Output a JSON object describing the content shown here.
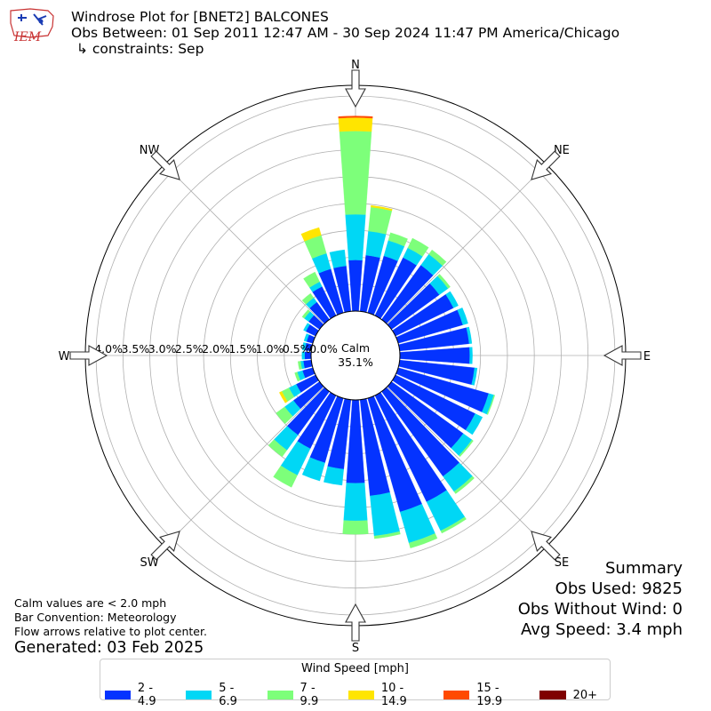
{
  "header": {
    "title": "Windrose Plot for [BNET2] BALCONES",
    "obs_between": "Obs Between: 01 Sep 2011 12:47 AM - 30 Sep 2024 11:47 PM America/Chicago",
    "constraints": "↳ constraints: Sep",
    "logo_text": "IEM"
  },
  "notes": {
    "calm": "Calm values are < 2.0 mph",
    "convention": "Bar Convention: Meteorology",
    "flow": "Flow arrows relative to plot center.",
    "generated": "Generated: 03 Feb 2025"
  },
  "summary": {
    "title": "Summary",
    "obs_used": "Obs Used: 9825",
    "obs_without_wind": "Obs Without Wind: 0",
    "avg_speed": "Avg Speed: 3.4 mph"
  },
  "legend": {
    "title": "Wind Speed [mph]",
    "items": [
      {
        "label": "2 - 4.9",
        "color": "#0433ff"
      },
      {
        "label": "5 - 6.9",
        "color": "#00d7f5"
      },
      {
        "label": "7 - 9.9",
        "color": "#7dff7a"
      },
      {
        "label": "10 - 14.9",
        "color": "#ffe500"
      },
      {
        "label": "15 - 19.9",
        "color": "#ff4a00"
      },
      {
        "label": "20+",
        "color": "#7f0000"
      }
    ]
  },
  "chart_data": {
    "type": "windrose",
    "calm_label": "Calm",
    "calm_percent": "35.1%",
    "radial_ticks": [
      "0.0%",
      "0.5%",
      "1.0%",
      "1.5%",
      "2.0%",
      "2.5%",
      "3.0%",
      "3.5%",
      "4.0%"
    ],
    "radial_values": [
      0,
      0.5,
      1.0,
      1.5,
      2.0,
      2.5,
      3.0,
      3.5,
      4.0
    ],
    "rmax": 4.2,
    "compass_labels": [
      "N",
      "NE",
      "E",
      "SE",
      "S",
      "SW",
      "W",
      "NW"
    ],
    "bins": [
      "2 - 4.9",
      "5 - 6.9",
      "7 - 9.9",
      "10 - 14.9",
      "15 - 19.9",
      "20+"
    ],
    "directions_deg": [
      0,
      10,
      20,
      30,
      40,
      50,
      60,
      70,
      80,
      90,
      100,
      110,
      120,
      130,
      140,
      150,
      160,
      170,
      180,
      190,
      200,
      210,
      220,
      230,
      240,
      250,
      260,
      270,
      280,
      290,
      300,
      310,
      320,
      330,
      340,
      350
    ],
    "percent_by_direction": [
      [
        0.95,
        0.85,
        1.55,
        0.25,
        0.03,
        0.0
      ],
      [
        1.05,
        0.45,
        0.45,
        0.03,
        0.0,
        0.0
      ],
      [
        1.1,
        0.3,
        0.15,
        0.0,
        0.0,
        0.0
      ],
      [
        1.2,
        0.2,
        0.2,
        0.0,
        0.0,
        0.0
      ],
      [
        1.25,
        0.25,
        0.1,
        0.0,
        0.0,
        0.0
      ],
      [
        1.1,
        0.2,
        0.05,
        0.0,
        0.0,
        0.0
      ],
      [
        1.2,
        0.1,
        0.0,
        0.0,
        0.0,
        0.0
      ],
      [
        1.25,
        0.1,
        0.0,
        0.0,
        0.0,
        0.0
      ],
      [
        1.3,
        0.05,
        0.0,
        0.0,
        0.0,
        0.0
      ],
      [
        1.3,
        0.05,
        0.0,
        0.0,
        0.0,
        0.0
      ],
      [
        1.4,
        0.05,
        0.0,
        0.0,
        0.0,
        0.0
      ],
      [
        1.75,
        0.1,
        0.02,
        0.0,
        0.0,
        0.0
      ],
      [
        1.65,
        0.15,
        0.0,
        0.0,
        0.0,
        0.0
      ],
      [
        1.65,
        0.2,
        0.03,
        0.0,
        0.0,
        0.0
      ],
      [
        1.95,
        0.35,
        0.05,
        0.0,
        0.0,
        0.0
      ],
      [
        2.2,
        0.6,
        0.05,
        0.0,
        0.0,
        0.0
      ],
      [
        2.2,
        0.6,
        0.1,
        0.0,
        0.0,
        0.0
      ],
      [
        1.8,
        0.75,
        0.05,
        0.0,
        0.0,
        0.0
      ],
      [
        1.55,
        0.7,
        0.25,
        0.0,
        0.0,
        0.0
      ],
      [
        1.3,
        0.3,
        0.0,
        0.0,
        0.0,
        0.0
      ],
      [
        1.25,
        0.35,
        0.0,
        0.0,
        0.0,
        0.0
      ],
      [
        1.1,
        0.55,
        0.25,
        0.0,
        0.0,
        0.0
      ],
      [
        1.0,
        0.35,
        0.15,
        0.0,
        0.0,
        0.0
      ],
      [
        0.6,
        0.2,
        0.2,
        0.0,
        0.0,
        0.0
      ],
      [
        0.4,
        0.15,
        0.15,
        0.05,
        0.0,
        0.0
      ],
      [
        0.2,
        0.1,
        0.05,
        0.0,
        0.0,
        0.0
      ],
      [
        0.15,
        0.05,
        0.05,
        0.0,
        0.0,
        0.0
      ],
      [
        0.12,
        0.05,
        0.0,
        0.0,
        0.0,
        0.0
      ],
      [
        0.12,
        0.05,
        0.0,
        0.0,
        0.0,
        0.0
      ],
      [
        0.12,
        0.05,
        0.0,
        0.0,
        0.0,
        0.0
      ],
      [
        0.2,
        0.05,
        0.0,
        0.0,
        0.0,
        0.0
      ],
      [
        0.25,
        0.1,
        0.05,
        0.0,
        0.0,
        0.0
      ],
      [
        0.4,
        0.1,
        0.1,
        0.0,
        0.0,
        0.0
      ],
      [
        0.6,
        0.1,
        0.2,
        0.0,
        0.0,
        0.0
      ],
      [
        0.85,
        0.3,
        0.35,
        0.15,
        0.0,
        0.0
      ],
      [
        0.85,
        0.3,
        0.0,
        0.0,
        0.0,
        0.0
      ]
    ]
  }
}
